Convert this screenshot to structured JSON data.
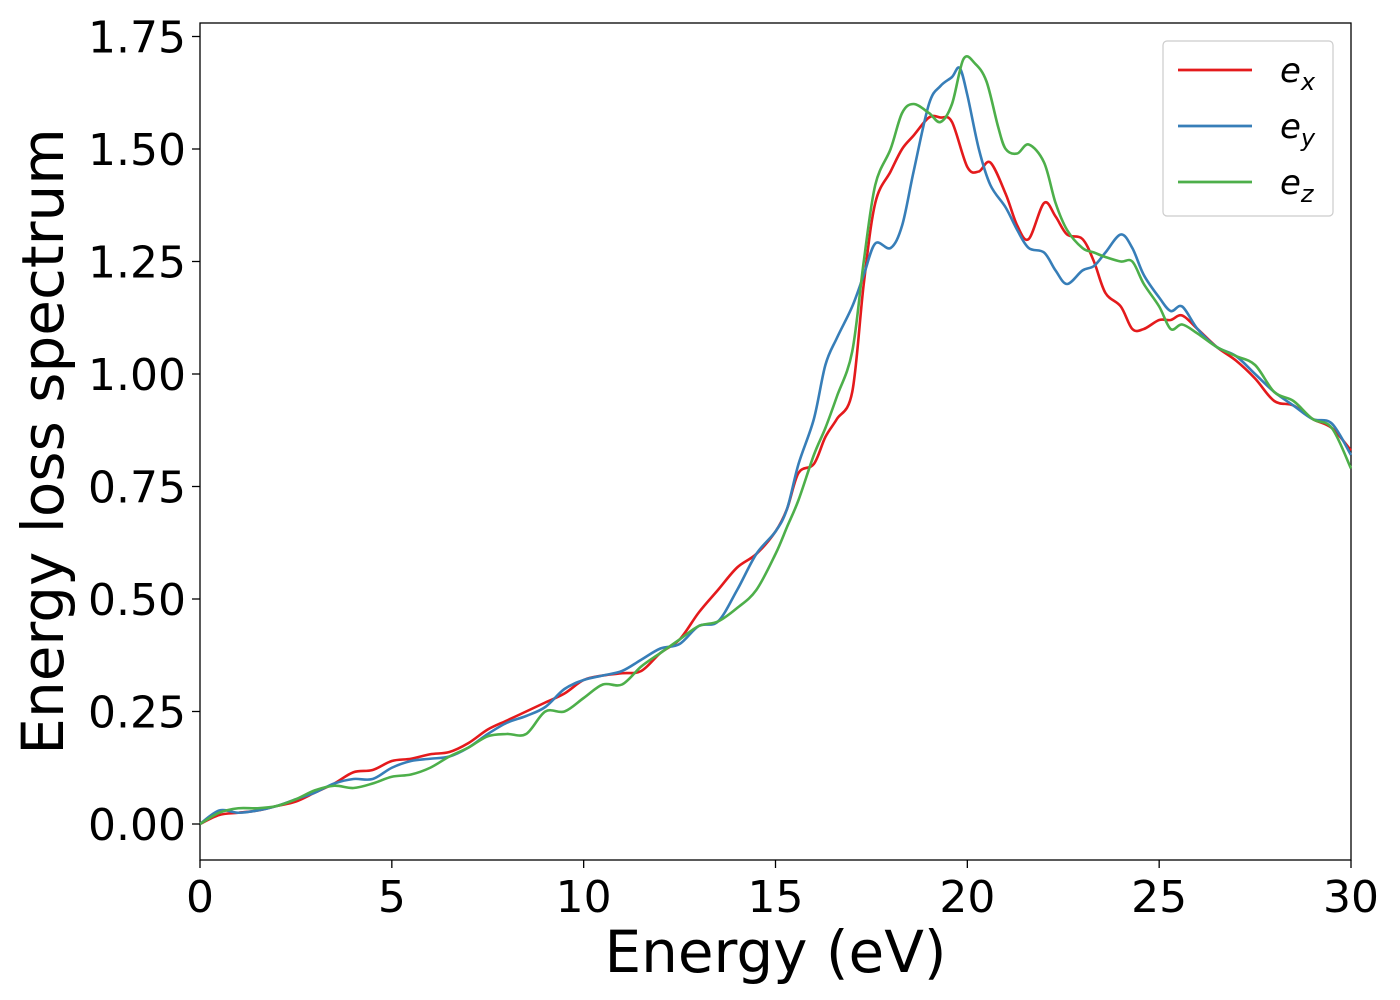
{
  "chart_data": {
    "type": "line",
    "title": "",
    "xlabel": "Energy (eV)",
    "ylabel": "Energy loss spectrum",
    "xlim": [
      0,
      30
    ],
    "ylim": [
      -0.08,
      1.78
    ],
    "xticks": [
      0,
      5,
      10,
      15,
      20,
      25,
      30
    ],
    "xtick_labels": [
      "0",
      "5",
      "10",
      "15",
      "20",
      "25",
      "30"
    ],
    "yticks": [
      0.0,
      0.25,
      0.5,
      0.75,
      1.0,
      1.25,
      1.5,
      1.75
    ],
    "ytick_labels": [
      "0.00",
      "0.25",
      "0.50",
      "0.75",
      "1.00",
      "1.25",
      "1.50",
      "1.75"
    ],
    "grid": false,
    "legend": "top-right",
    "series": [
      {
        "name": "e",
        "subscript": "x",
        "color": "#e41a1c",
        "x": [
          0,
          0.5,
          1,
          1.5,
          2,
          2.5,
          3,
          3.5,
          4,
          4.5,
          5,
          5.5,
          6,
          6.5,
          7,
          7.5,
          8,
          8.5,
          9,
          9.5,
          10,
          10.5,
          11,
          11.5,
          12,
          12.5,
          13,
          13.5,
          14,
          14.5,
          15,
          15.3,
          15.6,
          16,
          16.3,
          16.6,
          17,
          17.3,
          17.6,
          18,
          18.3,
          18.6,
          19,
          19.3,
          19.6,
          20,
          20.3,
          20.6,
          21,
          21.3,
          21.6,
          22,
          22.3,
          22.6,
          23,
          23.3,
          23.6,
          24,
          24.3,
          24.6,
          25,
          25.3,
          25.6,
          26,
          26.5,
          27,
          27.5,
          28,
          28.5,
          29,
          29.5,
          30
        ],
        "y": [
          0.0,
          0.02,
          0.025,
          0.03,
          0.04,
          0.05,
          0.07,
          0.09,
          0.115,
          0.12,
          0.14,
          0.145,
          0.155,
          0.16,
          0.18,
          0.21,
          0.23,
          0.25,
          0.27,
          0.29,
          0.32,
          0.33,
          0.335,
          0.34,
          0.38,
          0.41,
          0.47,
          0.52,
          0.57,
          0.6,
          0.65,
          0.7,
          0.78,
          0.8,
          0.86,
          0.9,
          0.96,
          1.2,
          1.38,
          1.45,
          1.5,
          1.53,
          1.57,
          1.57,
          1.56,
          1.46,
          1.45,
          1.47,
          1.4,
          1.33,
          1.3,
          1.38,
          1.35,
          1.31,
          1.3,
          1.25,
          1.18,
          1.15,
          1.1,
          1.1,
          1.12,
          1.12,
          1.13,
          1.1,
          1.06,
          1.03,
          0.99,
          0.94,
          0.93,
          0.9,
          0.88,
          0.83
        ]
      },
      {
        "name": "e",
        "subscript": "y",
        "color": "#377eb8",
        "x": [
          0,
          0.5,
          1,
          1.5,
          2,
          2.5,
          3,
          3.5,
          4,
          4.5,
          5,
          5.5,
          6,
          6.5,
          7,
          7.5,
          8,
          8.5,
          9,
          9.5,
          10,
          10.5,
          11,
          11.5,
          12,
          12.5,
          13,
          13.5,
          14,
          14.5,
          15,
          15.3,
          15.6,
          16,
          16.3,
          16.6,
          17,
          17.3,
          17.6,
          18,
          18.3,
          18.6,
          19,
          19.3,
          19.6,
          19.8,
          20,
          20.3,
          20.6,
          21,
          21.3,
          21.6,
          22,
          22.3,
          22.6,
          23,
          23.3,
          23.6,
          24,
          24.3,
          24.6,
          25,
          25.3,
          25.6,
          26,
          26.5,
          27,
          27.5,
          28,
          28.5,
          29,
          29.5,
          30
        ],
        "y": [
          0.0,
          0.03,
          0.025,
          0.03,
          0.04,
          0.055,
          0.07,
          0.09,
          0.1,
          0.1,
          0.125,
          0.14,
          0.145,
          0.15,
          0.17,
          0.2,
          0.225,
          0.24,
          0.26,
          0.3,
          0.32,
          0.33,
          0.34,
          0.365,
          0.39,
          0.4,
          0.44,
          0.45,
          0.52,
          0.6,
          0.65,
          0.7,
          0.8,
          0.9,
          1.02,
          1.08,
          1.15,
          1.22,
          1.29,
          1.28,
          1.33,
          1.45,
          1.6,
          1.64,
          1.66,
          1.68,
          1.62,
          1.5,
          1.42,
          1.37,
          1.32,
          1.28,
          1.27,
          1.23,
          1.2,
          1.23,
          1.24,
          1.27,
          1.31,
          1.28,
          1.22,
          1.17,
          1.14,
          1.15,
          1.1,
          1.06,
          1.04,
          1.0,
          0.96,
          0.93,
          0.9,
          0.89,
          0.82
        ]
      },
      {
        "name": "e",
        "subscript": "z",
        "color": "#4daf4a",
        "x": [
          0,
          0.5,
          1,
          1.5,
          2,
          2.5,
          3,
          3.5,
          4,
          4.5,
          5,
          5.5,
          6,
          6.5,
          7,
          7.5,
          8,
          8.5,
          9,
          9.5,
          10,
          10.5,
          11,
          11.5,
          12,
          12.5,
          13,
          13.5,
          14,
          14.5,
          15,
          15.3,
          15.6,
          16,
          16.3,
          16.6,
          17,
          17.3,
          17.6,
          18,
          18.3,
          18.6,
          19,
          19.3,
          19.6,
          19.9,
          20.2,
          20.5,
          20.8,
          21,
          21.3,
          21.6,
          22,
          22.3,
          22.6,
          23,
          23.3,
          23.6,
          24,
          24.3,
          24.6,
          25,
          25.3,
          25.6,
          26,
          26.5,
          27,
          27.5,
          28,
          28.5,
          29,
          29.5,
          30
        ],
        "y": [
          0.0,
          0.025,
          0.035,
          0.035,
          0.04,
          0.055,
          0.075,
          0.085,
          0.08,
          0.09,
          0.105,
          0.11,
          0.125,
          0.15,
          0.17,
          0.195,
          0.2,
          0.2,
          0.25,
          0.25,
          0.28,
          0.31,
          0.31,
          0.35,
          0.38,
          0.41,
          0.44,
          0.45,
          0.48,
          0.52,
          0.6,
          0.66,
          0.72,
          0.82,
          0.88,
          0.95,
          1.05,
          1.25,
          1.42,
          1.5,
          1.58,
          1.6,
          1.58,
          1.56,
          1.6,
          1.7,
          1.69,
          1.65,
          1.55,
          1.5,
          1.49,
          1.51,
          1.47,
          1.38,
          1.32,
          1.28,
          1.27,
          1.26,
          1.25,
          1.25,
          1.2,
          1.15,
          1.1,
          1.11,
          1.09,
          1.06,
          1.04,
          1.02,
          0.96,
          0.94,
          0.9,
          0.88,
          0.79
        ]
      }
    ]
  }
}
